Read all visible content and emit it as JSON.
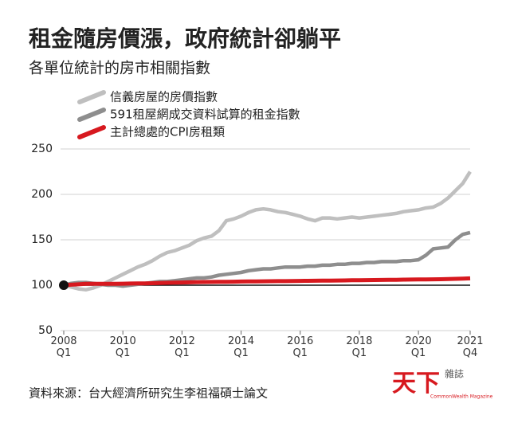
{
  "chart_data": {
    "type": "line",
    "title": "租金隨房價漲，政府統計卻躺平",
    "subtitle": "各單位統計的房市相關指數",
    "source": "資料來源：台大經濟所研究生李祖福碩士論文",
    "logo": {
      "main": "天下",
      "side": "雜誌",
      "english": "CommonWealth Magazine"
    },
    "x": [
      2008,
      2008.25,
      2008.5,
      2008.75,
      2009,
      2009.25,
      2009.5,
      2009.75,
      2010,
      2010.25,
      2010.5,
      2010.75,
      2011,
      2011.25,
      2011.5,
      2011.75,
      2012,
      2012.25,
      2012.5,
      2012.75,
      2013,
      2013.25,
      2013.5,
      2013.75,
      2014,
      2014.25,
      2014.5,
      2014.75,
      2015,
      2015.25,
      2015.5,
      2015.75,
      2016,
      2016.25,
      2016.5,
      2016.75,
      2017,
      2017.25,
      2017.5,
      2017.75,
      2018,
      2018.25,
      2018.5,
      2018.75,
      2019,
      2019.25,
      2019.5,
      2019.75,
      2020,
      2020.25,
      2020.5,
      2020.75,
      2021,
      2021.25,
      2021.5,
      2021.75
    ],
    "series": [
      {
        "name": "信義房屋的房價指數",
        "color": "#bfbfbf",
        "values": [
          100,
          98,
          96,
          95,
          97,
          100,
          104,
          108,
          112,
          116,
          120,
          123,
          127,
          132,
          136,
          138,
          141,
          144,
          149,
          152,
          154,
          160,
          171,
          173,
          176,
          180,
          183,
          184,
          183,
          181,
          180,
          178,
          176,
          173,
          171,
          174,
          174,
          173,
          174,
          175,
          174,
          175,
          176,
          177,
          178,
          179,
          181,
          182,
          183,
          185,
          186,
          190,
          196,
          204,
          212,
          225
        ]
      },
      {
        "name": "591租屋網成交資料試算的租金指數",
        "color": "#8e8e8e",
        "values": [
          100,
          102,
          103,
          103,
          102,
          101,
          100,
          100,
          99,
          100,
          101,
          102,
          103,
          104,
          104,
          105,
          106,
          107,
          108,
          108,
          109,
          111,
          112,
          113,
          114,
          116,
          117,
          118,
          118,
          119,
          120,
          120,
          120,
          121,
          121,
          122,
          122,
          123,
          123,
          124,
          124,
          125,
          125,
          126,
          126,
          126,
          127,
          127,
          128,
          133,
          140,
          141,
          142,
          150,
          156,
          158
        ]
      },
      {
        "name": "主計總處的CPI房租類",
        "color": "#d7191f",
        "values": [
          100,
          100.5,
          101,
          101.5,
          101.5,
          101.5,
          101.5,
          101.6,
          101.7,
          101.8,
          101.9,
          102,
          102.2,
          102.4,
          102.6,
          102.8,
          103,
          103.2,
          103.4,
          103.5,
          103.6,
          103.7,
          103.8,
          103.9,
          104,
          104.1,
          104.2,
          104.3,
          104.4,
          104.5,
          104.5,
          104.6,
          104.7,
          104.8,
          104.9,
          105,
          105.1,
          105.2,
          105.3,
          105.4,
          105.5,
          105.6,
          105.7,
          105.8,
          105.9,
          106,
          106.1,
          106.2,
          106.3,
          106.4,
          106.5,
          106.6,
          106.8,
          107,
          107.2,
          107.5
        ]
      }
    ],
    "xlim": [
      2008,
      2021.75
    ],
    "xticks": [
      {
        "value": 2008,
        "label": "2008\nQ1"
      },
      {
        "value": 2010,
        "label": "2010\nQ1"
      },
      {
        "value": 2012,
        "label": "2012\nQ1"
      },
      {
        "value": 2014,
        "label": "2014\nQ1"
      },
      {
        "value": 2016,
        "label": "2016\nQ1"
      },
      {
        "value": 2018,
        "label": "2018\nQ1"
      },
      {
        "value": 2020,
        "label": "2020\nQ1"
      },
      {
        "value": 2021.75,
        "label": "2021\nQ4"
      }
    ],
    "ylim": [
      50,
      250
    ],
    "yticks": [
      50,
      100,
      150,
      200,
      250
    ],
    "baseline": 100,
    "grid": true
  }
}
